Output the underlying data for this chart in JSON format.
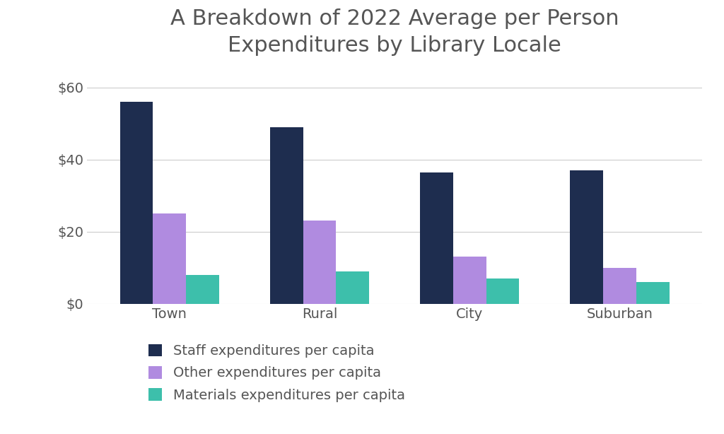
{
  "title": "A Breakdown of 2022 Average per Person\nExpenditures by Library Locale",
  "categories": [
    "Town",
    "Rural",
    "City",
    "Suburban"
  ],
  "series": [
    {
      "label": "Staff expenditures per capita",
      "color": "#1e2d4f",
      "values": [
        56.0,
        49.0,
        36.5,
        37.0
      ]
    },
    {
      "label": "Other expenditures per capita",
      "color": "#b08be0",
      "values": [
        25.0,
        23.0,
        13.0,
        10.0
      ]
    },
    {
      "label": "Materials expenditures per capita",
      "color": "#3dbfab",
      "values": [
        8.0,
        9.0,
        7.0,
        6.0
      ]
    }
  ],
  "ylim": [
    0,
    65
  ],
  "yticks": [
    0,
    20,
    40,
    60
  ],
  "ytick_labels": [
    "$0",
    "$20",
    "$40",
    "$60"
  ],
  "background_color": "#ffffff",
  "title_color": "#555555",
  "tick_color": "#555555",
  "title_fontsize": 22,
  "tick_fontsize": 14,
  "legend_fontsize": 14,
  "bar_width": 0.22
}
